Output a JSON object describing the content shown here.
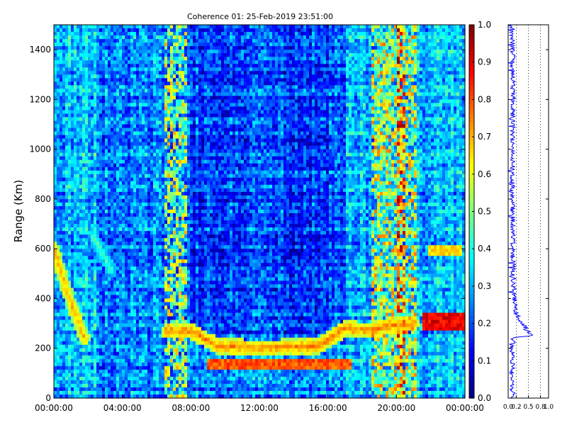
{
  "chart_data": [
    {
      "type": "heatmap",
      "title": "Coherence 01: 25-Feb-2019 23:51:00",
      "xlabel": "",
      "ylabel": "Range (Km)",
      "x_ticks": [
        "00:00:00",
        "04:00:00",
        "08:00:00",
        "12:00:00",
        "16:00:00",
        "20:00:00",
        "00:00:00"
      ],
      "x_range_hours": [
        0,
        24
      ],
      "ylim": [
        0,
        1500
      ],
      "y_ticks": [
        0,
        200,
        400,
        600,
        800,
        1000,
        1200,
        1400
      ],
      "colorbar": {
        "colormap": "jet",
        "range": [
          0.0,
          1.0
        ],
        "ticks": [
          "0.0",
          "0.1",
          "0.2",
          "0.3",
          "0.4",
          "0.5",
          "0.6",
          "0.7",
          "0.8",
          "0.9",
          "1.0"
        ]
      },
      "background_value": 0.25,
      "features": [
        {
          "kind": "vertical_band",
          "hours": [
            6.4,
            7.7
          ],
          "value": 0.65
        },
        {
          "kind": "vertical_band",
          "hours": [
            18.6,
            21.2
          ],
          "value": 0.7
        },
        {
          "kind": "vertical_band",
          "hours": [
            20.0,
            20.5
          ],
          "value": 0.9
        },
        {
          "kind": "echo_track",
          "points": [
            [
              6.6,
              270
            ],
            [
              8.0,
              270
            ],
            [
              9.5,
              210
            ],
            [
              12.0,
              200
            ],
            [
              15.5,
              210
            ],
            [
              17.0,
              280
            ],
            [
              18.5,
              270
            ],
            [
              19.5,
              290
            ],
            [
              21.0,
              300
            ]
          ],
          "value": 0.8
        },
        {
          "kind": "echo_strip",
          "hours": [
            9.0,
            17.3
          ],
          "range_km": [
            110,
            150
          ],
          "value": 0.85
        },
        {
          "kind": "echo_strip",
          "hours": [
            21.5,
            24.0
          ],
          "range_km": [
            270,
            340
          ],
          "value": 0.95
        },
        {
          "kind": "echo_strip",
          "hours": [
            21.8,
            23.9
          ],
          "range_km": [
            570,
            620
          ],
          "value": 0.7
        },
        {
          "kind": "diagonal_echo",
          "points": [
            [
              0.0,
              600
            ],
            [
              0.8,
              420
            ],
            [
              1.8,
              240
            ]
          ],
          "value": 0.75
        },
        {
          "kind": "diagonal_echo",
          "points": [
            [
              2.3,
              650
            ],
            [
              3.4,
              510
            ]
          ],
          "value": 0.5
        }
      ]
    },
    {
      "type": "line",
      "title": "",
      "xlabel": "",
      "ylabel": "",
      "xlim": [
        0.0,
        1.0
      ],
      "x_ticks": [
        "0.0",
        "0.2",
        "0.5",
        "0.8",
        "1.0"
      ],
      "ylim": [
        0,
        1500
      ],
      "grid": true,
      "x": [
        0.12,
        0.1,
        0.11,
        0.09,
        0.12,
        0.13,
        0.15,
        0.6,
        0.35,
        0.2,
        0.17,
        0.14,
        0.13,
        0.12,
        0.11,
        0.1,
        0.12,
        0.11,
        0.1
      ],
      "y": [
        0,
        100,
        150,
        200,
        230,
        240,
        245,
        250,
        300,
        340,
        380,
        420,
        500,
        600,
        800,
        1000,
        1200,
        1400,
        1500
      ]
    }
  ]
}
